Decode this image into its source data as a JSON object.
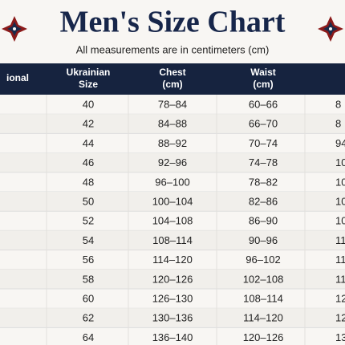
{
  "header": {
    "title": "Men's Size Chart",
    "subtitle": "All measurements are in centimeters (cm)"
  },
  "table": {
    "columns": [
      "ional",
      "Ukrainian\nSize",
      "Chest\n(cm)",
      "Waist\n(cm)"
    ],
    "rows": [
      [
        "40",
        "78–84",
        "60–66",
        "8"
      ],
      [
        "42",
        "84–88",
        "66–70",
        "8"
      ],
      [
        "44",
        "88–92",
        "70–74",
        "94"
      ],
      [
        "46",
        "92–96",
        "74–78",
        "10"
      ],
      [
        "48",
        "96–100",
        "78–82",
        "10"
      ],
      [
        "50",
        "100–104",
        "82–86",
        "10"
      ],
      [
        "52",
        "104–108",
        "86–90",
        "10"
      ],
      [
        "54",
        "108–114",
        "90–96",
        "11"
      ],
      [
        "56",
        "114–120",
        "96–102",
        "11"
      ],
      [
        "58",
        "120–126",
        "102–108",
        "11"
      ],
      [
        "60",
        "126–130",
        "108–114",
        "12"
      ],
      [
        "62",
        "130–136",
        "114–120",
        "12"
      ],
      [
        "64",
        "136–140",
        "120–126",
        "13"
      ]
    ]
  }
}
